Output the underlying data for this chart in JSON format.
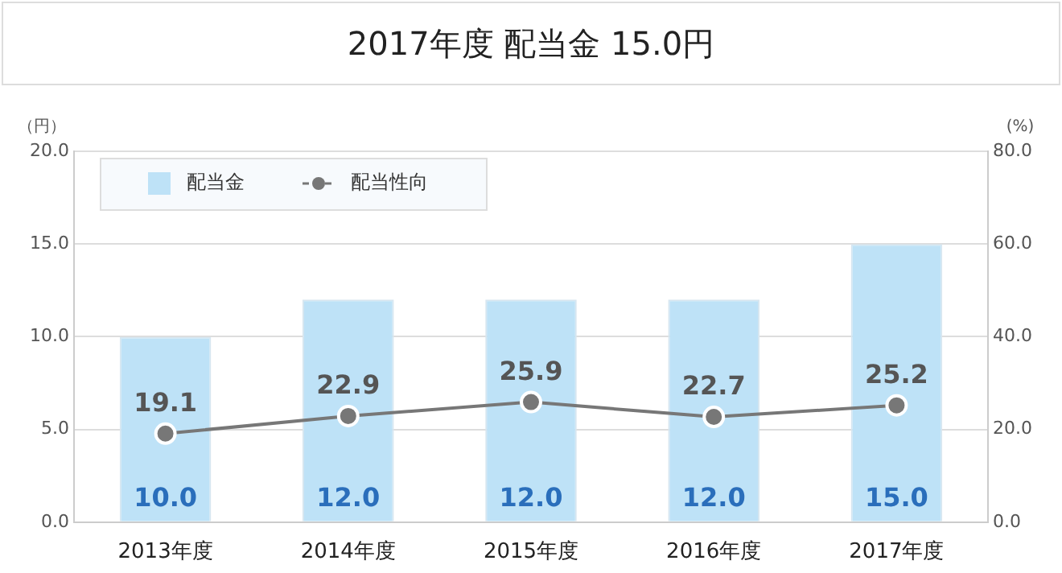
{
  "chart_data": {
    "type": "bar",
    "title": "2017年度 配当金 15.0円",
    "ylabel": "（円）",
    "y2label": "(%)",
    "categories": [
      "2013年度",
      "2014年度",
      "2015年度",
      "2016年度",
      "2017年度"
    ],
    "series": [
      {
        "name": "配当金",
        "color": "#bee2f7",
        "values": [
          10,
          12,
          12,
          12,
          15
        ],
        "value_labels": [
          "10.0",
          "12.0",
          "12.0",
          "12.0",
          "15.0"
        ]
      },
      {
        "name": "配当性向",
        "type": "line",
        "axis": "y2",
        "color": "#777777",
        "marker": "circle",
        "values": [
          19.1,
          22.9,
          25.9,
          22.7,
          25.2
        ],
        "value_labels": [
          "19.1",
          "22.9",
          "25.9",
          "22.7",
          "25.2"
        ]
      }
    ],
    "ylim": [
      0,
      20
    ],
    "yticks": [
      {
        "value": 0,
        "label": "0.0"
      },
      {
        "value": 5,
        "label": "5.0"
      },
      {
        "value": 10,
        "label": "10.0"
      },
      {
        "value": 15,
        "label": "15.0"
      },
      {
        "value": 20,
        "label": "20.0"
      }
    ],
    "y2lim": [
      0,
      80
    ],
    "y2ticks": [
      {
        "value": 0,
        "label": "0.0"
      },
      {
        "value": 20,
        "label": "20.0"
      },
      {
        "value": 40,
        "label": "40.0"
      },
      {
        "value": 60,
        "label": "60.0"
      },
      {
        "value": 80,
        "label": "80.0"
      }
    ],
    "grid": "y",
    "legend": "top left"
  }
}
